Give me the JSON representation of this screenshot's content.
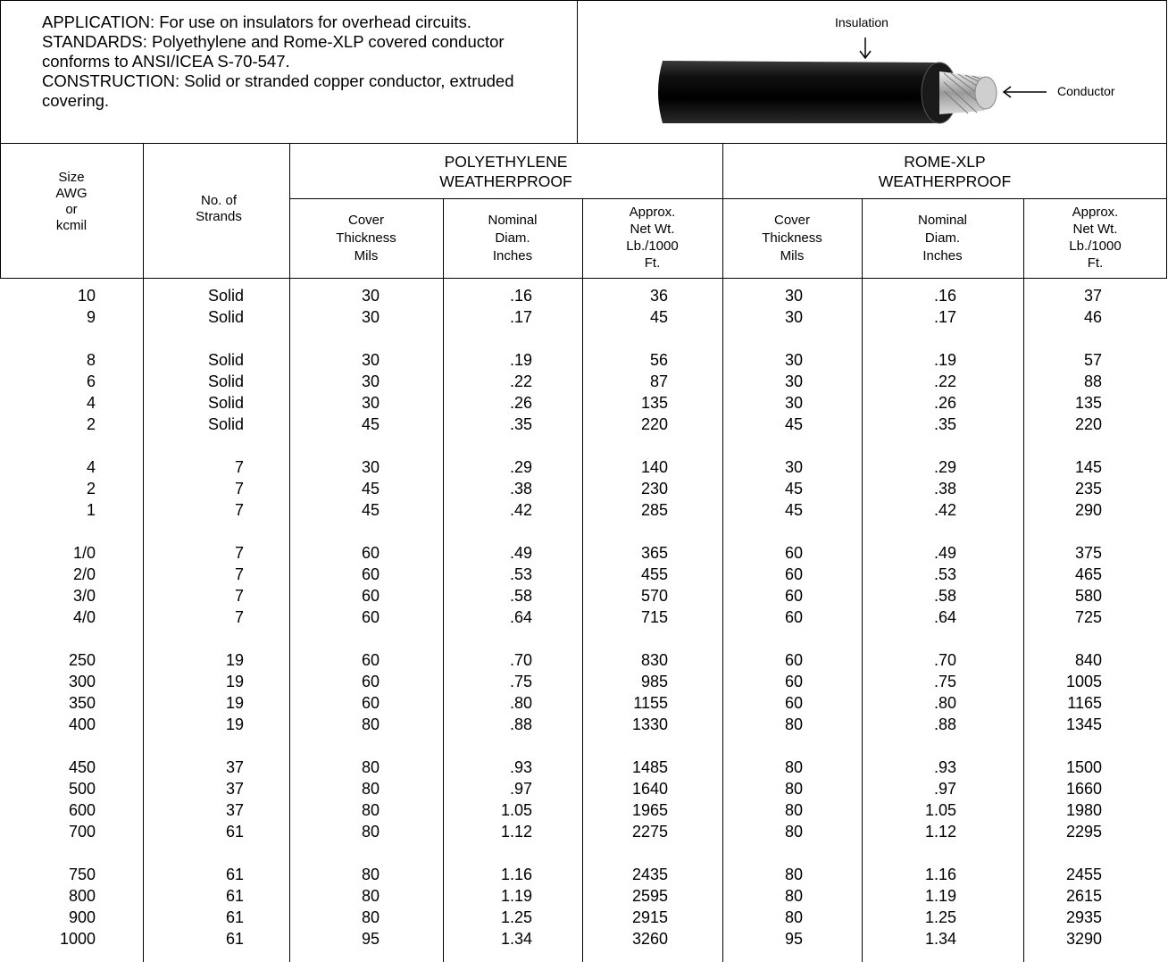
{
  "intro": [
    "APPLICATION: For use on insulators for overhead circuits.",
    "STANDARDS: Polyethylene and Rome-XLP covered conductor",
    "conforms to ANSI/ICEA S-70-547.",
    "CONSTRUCTION: Solid or stranded copper conductor, extruded",
    "covering."
  ],
  "figure": {
    "insulation_label": "Insulation",
    "conductor_label": "Conductor"
  },
  "table": {
    "groups": [
      [
        "POLYETHYLENE",
        "WEATHERPROOF"
      ],
      [
        "ROME-XLP",
        "WEATHERPROOF"
      ]
    ],
    "headers": {
      "size": [
        "Size",
        "AWG",
        "or",
        "kcmil"
      ],
      "strands": [
        "No. of",
        "Strands"
      ],
      "cover": [
        "Cover",
        "Thickness",
        "Mils"
      ],
      "diam": [
        "Nominal",
        "Diam.",
        "Inches"
      ],
      "wt": [
        "Approx.",
        "Net Wt.",
        "Lb./1000",
        "Ft."
      ]
    },
    "row_groups": [
      [
        [
          "10",
          "Solid",
          "30",
          ".16",
          "36",
          "30",
          ".16",
          "37"
        ],
        [
          "9",
          "Solid",
          "30",
          ".17",
          "45",
          "30",
          ".17",
          "46"
        ]
      ],
      [
        [
          "8",
          "Solid",
          "30",
          ".19",
          "56",
          "30",
          ".19",
          "57"
        ],
        [
          "6",
          "Solid",
          "30",
          ".22",
          "87",
          "30",
          ".22",
          "88"
        ],
        [
          "4",
          "Solid",
          "30",
          ".26",
          "135",
          "30",
          ".26",
          "135"
        ],
        [
          "2",
          "Solid",
          "45",
          ".35",
          "220",
          "45",
          ".35",
          "220"
        ]
      ],
      [
        [
          "4",
          "7",
          "30",
          ".29",
          "140",
          "30",
          ".29",
          "145"
        ],
        [
          "2",
          "7",
          "45",
          ".38",
          "230",
          "45",
          ".38",
          "235"
        ],
        [
          "1",
          "7",
          "45",
          ".42",
          "285",
          "45",
          ".42",
          "290"
        ]
      ],
      [
        [
          "1/0",
          "7",
          "60",
          ".49",
          "365",
          "60",
          ".49",
          "375"
        ],
        [
          "2/0",
          "7",
          "60",
          ".53",
          "455",
          "60",
          ".53",
          "465"
        ],
        [
          "3/0",
          "7",
          "60",
          ".58",
          "570",
          "60",
          ".58",
          "580"
        ],
        [
          "4/0",
          "7",
          "60",
          ".64",
          "715",
          "60",
          ".64",
          "725"
        ]
      ],
      [
        [
          "250",
          "19",
          "60",
          ".70",
          "830",
          "60",
          ".70",
          "840"
        ],
        [
          "300",
          "19",
          "60",
          ".75",
          "985",
          "60",
          ".75",
          "1005"
        ],
        [
          "350",
          "19",
          "60",
          ".80",
          "1155",
          "60",
          ".80",
          "1165"
        ],
        [
          "400",
          "19",
          "80",
          ".88",
          "1330",
          "80",
          ".88",
          "1345"
        ]
      ],
      [
        [
          "450",
          "37",
          "80",
          ".93",
          "1485",
          "80",
          ".93",
          "1500"
        ],
        [
          "500",
          "37",
          "80",
          ".97",
          "1640",
          "80",
          ".97",
          "1660"
        ],
        [
          "600",
          "37",
          "80",
          "1.05",
          "1965",
          "80",
          "1.05",
          "1980"
        ],
        [
          "700",
          "61",
          "80",
          "1.12",
          "2275",
          "80",
          "1.12",
          "2295"
        ]
      ],
      [
        [
          "750",
          "61",
          "80",
          "1.16",
          "2435",
          "80",
          "1.16",
          "2455"
        ],
        [
          "800",
          "61",
          "80",
          "1.19",
          "2595",
          "80",
          "1.19",
          "2615"
        ],
        [
          "900",
          "61",
          "80",
          "1.25",
          "2915",
          "80",
          "1.25",
          "2935"
        ],
        [
          "1000",
          "61",
          "95",
          "1.34",
          "3260",
          "95",
          "1.34",
          "3290"
        ]
      ]
    ]
  }
}
